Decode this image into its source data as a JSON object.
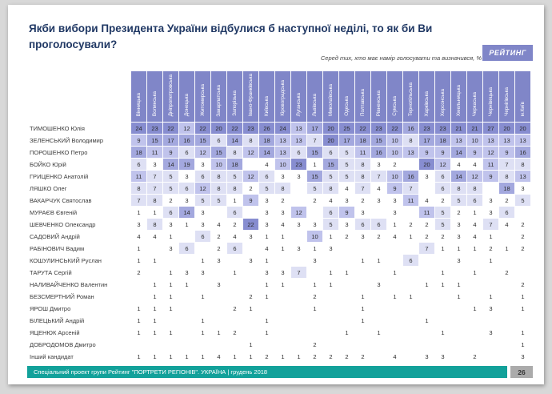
{
  "header": {
    "title": "Якби вибори Президента України відбулися б наступної неділі, то як би Ви проголосували?",
    "subtitle": "Серед тих, хто має намір голосувати та визначився, %",
    "logo": "РЕЙТИНГ"
  },
  "chart_data": {
    "type": "heatmap",
    "unit": "%",
    "columns": [
      "Вінницька",
      "Волинська",
      "Дніпропетровська",
      "Донецька",
      "Житомирська",
      "Закарпатська",
      "Запорізька",
      "Івано-Франківська",
      "Київська",
      "Кіровоградська",
      "Луганська",
      "Львівська",
      "Миколаївська",
      "Одеська",
      "Полтавська",
      "Рівненська",
      "Сумська",
      "Тернопільська",
      "Харківська",
      "Херсонська",
      "Хмельницька",
      "Черкаська",
      "Чернівецька",
      "Чернігівська",
      "м.Київ"
    ],
    "rows": [
      {
        "name": "ТИМОШЕНКО Юлія",
        "values": [
          24,
          23,
          22,
          12,
          22,
          20,
          22,
          23,
          26,
          24,
          13,
          17,
          20,
          25,
          22,
          23,
          22,
          16,
          23,
          23,
          21,
          21,
          27,
          20,
          20
        ]
      },
      {
        "name": "ЗЕЛЕНСЬКИЙ Володимир",
        "values": [
          9,
          15,
          17,
          16,
          15,
          6,
          14,
          8,
          18,
          13,
          13,
          7,
          20,
          17,
          18,
          15,
          10,
          8,
          17,
          18,
          13,
          10,
          13,
          13,
          13
        ]
      },
      {
        "name": "ПОРОШЕНКО Петро",
        "values": [
          18,
          11,
          9,
          6,
          12,
          15,
          8,
          12,
          14,
          13,
          6,
          15,
          6,
          5,
          11,
          16,
          10,
          13,
          9,
          9,
          14,
          9,
          12,
          9,
          16
        ]
      },
      {
        "name": "БОЙКО Юрій",
        "values": [
          6,
          3,
          14,
          19,
          3,
          10,
          18,
          "",
          4,
          10,
          23,
          1,
          15,
          5,
          8,
          3,
          2,
          "",
          20,
          12,
          4,
          4,
          11,
          7,
          8
        ]
      },
      {
        "name": "ГРИЦЕНКО Анатолій",
        "values": [
          11,
          7,
          5,
          3,
          6,
          8,
          5,
          12,
          6,
          3,
          3,
          15,
          5,
          5,
          8,
          7,
          10,
          16,
          3,
          6,
          14,
          12,
          9,
          8,
          13
        ]
      },
      {
        "name": "ЛЯШКО Олег",
        "values": [
          8,
          7,
          5,
          6,
          12,
          8,
          8,
          2,
          5,
          8,
          "",
          5,
          8,
          4,
          7,
          4,
          9,
          7,
          "",
          6,
          8,
          8,
          "",
          18,
          3
        ]
      },
      {
        "name": "ВАКАРЧУК Святослав",
        "values": [
          7,
          8,
          2,
          3,
          5,
          5,
          1,
          9,
          3,
          2,
          "",
          2,
          4,
          3,
          2,
          3,
          3,
          11,
          4,
          2,
          5,
          6,
          3,
          2,
          5
        ]
      },
      {
        "name": "МУРАЄВ Євгеній",
        "values": [
          1,
          1,
          6,
          14,
          3,
          "",
          6,
          "",
          3,
          3,
          12,
          "",
          6,
          9,
          3,
          "",
          3,
          "",
          11,
          5,
          2,
          1,
          3,
          6,
          ""
        ]
      },
      {
        "name": "ШЕВЧЕНКО Олександр",
        "values": [
          3,
          8,
          3,
          1,
          3,
          4,
          2,
          22,
          3,
          4,
          3,
          3,
          5,
          3,
          6,
          6,
          1,
          2,
          2,
          5,
          3,
          4,
          7,
          4,
          2
        ]
      },
      {
        "name": "САДОВИЙ Андрій",
        "values": [
          4,
          4,
          1,
          "",
          6,
          2,
          4,
          3,
          1,
          1,
          "",
          10,
          1,
          2,
          3,
          2,
          4,
          1,
          2,
          2,
          3,
          4,
          1,
          "",
          2
        ]
      },
      {
        "name": "РАБІНОВИЧ Вадим",
        "values": [
          1,
          "",
          3,
          6,
          "",
          2,
          6,
          "",
          4,
          1,
          3,
          1,
          3,
          "",
          "",
          "",
          "",
          "",
          7,
          1,
          1,
          1,
          2,
          1,
          2
        ]
      },
      {
        "name": "КОШУЛИНСЬКИЙ Руслан",
        "values": [
          1,
          1,
          "",
          "",
          1,
          3,
          "",
          3,
          1,
          "",
          "",
          3,
          "",
          "",
          1,
          1,
          "",
          6,
          "",
          "",
          3,
          "",
          1,
          "",
          ""
        ]
      },
      {
        "name": "ТАРУТА Сергій",
        "values": [
          2,
          "",
          1,
          3,
          3,
          "",
          1,
          "",
          3,
          3,
          7,
          "",
          1,
          1,
          "",
          "",
          1,
          "",
          "",
          1,
          "",
          1,
          "",
          2,
          ""
        ]
      },
      {
        "name": "НАЛИВАЙЧЕНКО Валентин",
        "values": [
          "",
          1,
          1,
          1,
          "",
          3,
          "",
          "",
          1,
          1,
          "",
          1,
          1,
          "",
          "",
          3,
          "",
          "",
          1,
          1,
          1,
          "",
          "",
          "",
          2
        ]
      },
      {
        "name": "БЕЗСМЕРТНИЙ Роман",
        "values": [
          "",
          1,
          1,
          "",
          1,
          "",
          "",
          2,
          1,
          "",
          "",
          2,
          "",
          "",
          1,
          "",
          1,
          1,
          "",
          "",
          1,
          "",
          1,
          "",
          1
        ]
      },
      {
        "name": "ЯРОШ Дмитро",
        "values": [
          1,
          1,
          1,
          "",
          "",
          "",
          2,
          1,
          "",
          "",
          "",
          1,
          "",
          "",
          1,
          "",
          "",
          "",
          "",
          "",
          "",
          1,
          3,
          "",
          1
        ]
      },
      {
        "name": "БІЛЕЦЬКИЙ Андрій",
        "values": [
          1,
          1,
          "",
          "",
          1,
          "",
          "",
          "",
          1,
          "",
          "",
          "",
          "",
          "",
          1,
          "",
          "",
          "",
          1,
          "",
          "",
          "",
          "",
          "",
          ""
        ]
      },
      {
        "name": "ЯЦЕНЮК Арсеній",
        "values": [
          1,
          1,
          1,
          "",
          1,
          1,
          2,
          "",
          1,
          "",
          "",
          "",
          "",
          1,
          "",
          1,
          "",
          "",
          "",
          1,
          "",
          "",
          3,
          "",
          1
        ]
      },
      {
        "name": "ДОБРОДОМОВ Дмитро",
        "values": [
          "",
          "",
          "",
          "",
          "",
          "",
          "",
          1,
          "",
          "",
          "",
          2,
          "",
          "",
          "",
          "",
          "",
          "",
          "",
          "",
          "",
          "",
          "",
          "",
          1
        ]
      },
      {
        "name": "Інший кандидат",
        "values": [
          1,
          1,
          1,
          1,
          1,
          4,
          1,
          1,
          2,
          1,
          1,
          2,
          2,
          2,
          2,
          "",
          4,
          "",
          3,
          3,
          "",
          2,
          "",
          "",
          3
        ]
      }
    ],
    "heat_legend": "cell shading intensity scales with value: 1-4 none, 5-8 light, 9-13 medium-light, 14-19 medium, 20+ dark"
  },
  "footer": {
    "text": "Спеціальний проект групи Рейтинг \"ПОРТРЕТИ РЕГІОНІВ\". УКРАЇНА | грудень 2018",
    "page": "26"
  },
  "colors": {
    "header_purple": "#8086c8",
    "heat_1": "#dee0f4",
    "heat_2": "#c0c3ec",
    "heat_3": "#a3a8de",
    "heat_4": "#878dd0",
    "title_navy": "#203864",
    "footer_teal": "#12a19a"
  }
}
